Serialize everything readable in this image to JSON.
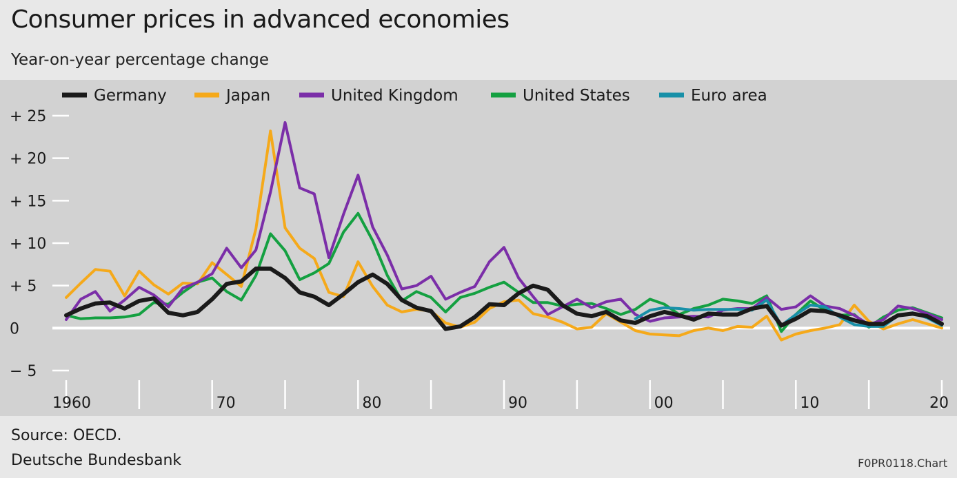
{
  "header": {
    "title": "Consumer prices in advanced economies",
    "subtitle": "Year-on-year percentage change"
  },
  "footer": {
    "source": "Source: OECD.",
    "org": "Deutsche Bundesbank",
    "code": "F0PR0118.Chart"
  },
  "colors": {
    "Germany": "#1a1a1a",
    "Japan": "#f5a91a",
    "United Kingdom": "#7b2ea8",
    "United States": "#14a041",
    "Euro area": "#1890a8",
    "plot_bg": "#d2d2d2",
    "page_bg": "#e8e8e8"
  },
  "chart_data": {
    "type": "line",
    "title": "Consumer prices in advanced economies",
    "subtitle": "Year-on-year percentage change",
    "xlabel": "",
    "ylabel": "",
    "xlim": [
      1960,
      2020
    ],
    "ylim": [
      -5,
      25
    ],
    "y_ticks": [
      25,
      20,
      15,
      10,
      5,
      0,
      -5
    ],
    "y_tick_labels": [
      "+ 25",
      "+ 20",
      "+ 15",
      "+ 10",
      "+  5",
      "0",
      "−  5"
    ],
    "x_tick_years": [
      1960,
      1970,
      1980,
      1990,
      2000,
      2010,
      2020
    ],
    "x_tick_labels": [
      "1960",
      "70",
      "80",
      "90",
      "00",
      "10",
      "20"
    ],
    "grid": false,
    "legend_position": "top",
    "x": [
      1960,
      1961,
      1962,
      1963,
      1964,
      1965,
      1966,
      1967,
      1968,
      1969,
      1970,
      1971,
      1972,
      1973,
      1974,
      1975,
      1976,
      1977,
      1978,
      1979,
      1980,
      1981,
      1982,
      1983,
      1984,
      1985,
      1986,
      1987,
      1988,
      1989,
      1990,
      1991,
      1992,
      1993,
      1994,
      1995,
      1996,
      1997,
      1998,
      1999,
      2000,
      2001,
      2002,
      2003,
      2004,
      2005,
      2006,
      2007,
      2008,
      2009,
      2010,
      2011,
      2012,
      2013,
      2014,
      2015,
      2016,
      2017,
      2018,
      2019,
      2020
    ],
    "series": [
      {
        "name": "Japan",
        "values": [
          3.6,
          5.3,
          6.9,
          6.7,
          3.8,
          6.7,
          5.1,
          4.0,
          5.3,
          5.2,
          7.7,
          6.3,
          4.9,
          11.7,
          23.2,
          11.8,
          9.4,
          8.2,
          4.2,
          3.7,
          7.8,
          4.9,
          2.7,
          1.9,
          2.2,
          2.0,
          0.6,
          0.1,
          0.7,
          2.3,
          3.1,
          3.3,
          1.7,
          1.3,
          0.7,
          -0.1,
          0.1,
          1.7,
          0.7,
          -0.3,
          -0.7,
          -0.8,
          -0.9,
          -0.3,
          0.0,
          -0.3,
          0.2,
          0.1,
          1.4,
          -1.4,
          -0.7,
          -0.3,
          0.0,
          0.4,
          2.7,
          0.8,
          -0.1,
          0.5,
          1.0,
          0.5,
          0.0
        ]
      },
      {
        "name": "United States",
        "values": [
          1.5,
          1.1,
          1.2,
          1.2,
          1.3,
          1.6,
          3.0,
          2.8,
          4.2,
          5.4,
          5.9,
          4.3,
          3.3,
          6.2,
          11.1,
          9.1,
          5.7,
          6.5,
          7.6,
          11.3,
          13.5,
          10.3,
          6.2,
          3.2,
          4.3,
          3.6,
          1.9,
          3.6,
          4.1,
          4.8,
          5.4,
          4.2,
          3.0,
          3.0,
          2.6,
          2.8,
          2.9,
          2.3,
          1.6,
          2.2,
          3.4,
          2.8,
          1.6,
          2.3,
          2.7,
          3.4,
          3.2,
          2.9,
          3.8,
          -0.4,
          1.6,
          3.2,
          2.1,
          1.5,
          1.6,
          0.1,
          1.3,
          2.1,
          2.4,
          1.8,
          1.2
        ]
      },
      {
        "name": "United Kingdom",
        "values": [
          1.0,
          3.4,
          4.3,
          2.0,
          3.3,
          4.8,
          3.9,
          2.5,
          4.7,
          5.4,
          6.4,
          9.4,
          7.1,
          9.2,
          16.0,
          24.2,
          16.5,
          15.8,
          8.3,
          13.4,
          18.0,
          11.9,
          8.6,
          4.6,
          5.0,
          6.1,
          3.4,
          4.2,
          4.9,
          7.8,
          9.5,
          5.9,
          3.7,
          1.6,
          2.5,
          3.4,
          2.4,
          3.1,
          3.4,
          1.6,
          0.8,
          1.2,
          1.3,
          1.4,
          1.3,
          2.1,
          2.3,
          2.3,
          3.6,
          2.2,
          2.5,
          3.8,
          2.6,
          2.3,
          1.5,
          0.4,
          1.0,
          2.6,
          2.3,
          1.7,
          1.0
        ]
      },
      {
        "name": "Euro area",
        "values": [
          null,
          null,
          null,
          null,
          null,
          null,
          null,
          null,
          null,
          null,
          null,
          null,
          null,
          null,
          null,
          null,
          null,
          null,
          null,
          null,
          null,
          null,
          null,
          null,
          null,
          null,
          null,
          null,
          null,
          null,
          null,
          null,
          null,
          null,
          null,
          null,
          null,
          null,
          null,
          1.1,
          2.1,
          2.4,
          2.3,
          2.1,
          2.2,
          2.2,
          2.2,
          2.1,
          3.3,
          0.3,
          1.6,
          2.7,
          2.5,
          1.3,
          0.4,
          0.2,
          0.2,
          1.5,
          1.8,
          1.2,
          0.3
        ]
      },
      {
        "name": "Germany",
        "values": [
          1.5,
          2.3,
          2.9,
          3.0,
          2.3,
          3.2,
          3.5,
          1.8,
          1.5,
          1.9,
          3.4,
          5.2,
          5.5,
          7.0,
          7.0,
          5.9,
          4.2,
          3.7,
          2.7,
          4.0,
          5.4,
          6.3,
          5.2,
          3.3,
          2.4,
          2.0,
          -0.1,
          0.2,
          1.3,
          2.8,
          2.7,
          4.1,
          5.0,
          4.5,
          2.7,
          1.7,
          1.4,
          1.9,
          0.9,
          0.6,
          1.4,
          1.9,
          1.5,
          1.0,
          1.7,
          1.6,
          1.6,
          2.3,
          2.6,
          0.3,
          1.1,
          2.1,
          2.0,
          1.5,
          0.9,
          0.5,
          0.5,
          1.5,
          1.7,
          1.4,
          0.5
        ]
      }
    ]
  },
  "legend": [
    {
      "name": "Germany",
      "color": "#1a1a1a"
    },
    {
      "name": "Japan",
      "color": "#f5a91a"
    },
    {
      "name": "United Kingdom",
      "color": "#7b2ea8"
    },
    {
      "name": "United States",
      "color": "#14a041"
    },
    {
      "name": "Euro area",
      "color": "#1890a8"
    }
  ]
}
